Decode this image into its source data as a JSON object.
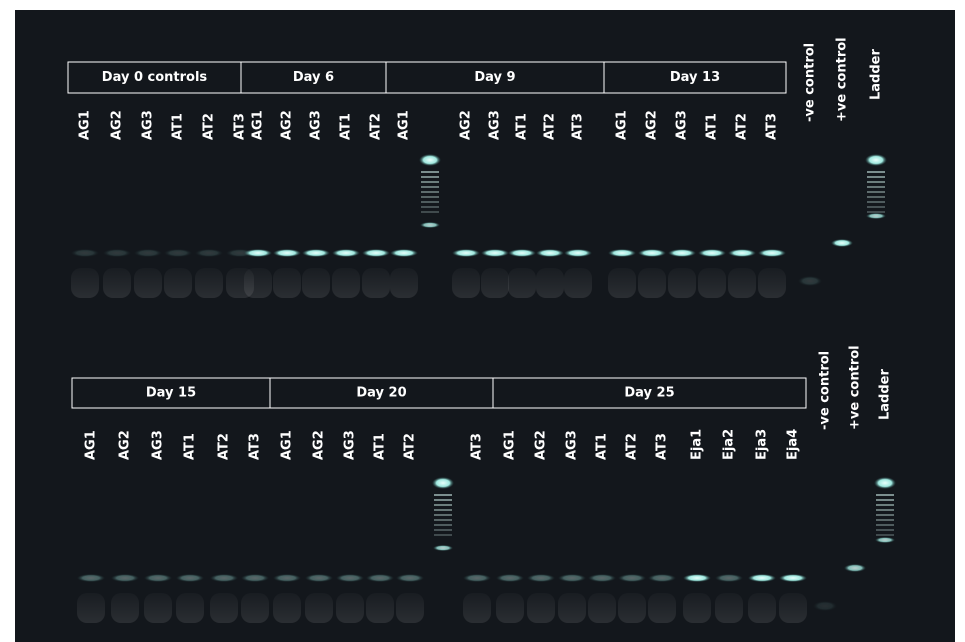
{
  "top_panel": {
    "groups": [
      "Day 0 controls",
      "Day 6",
      "Day 9",
      "Day 13"
    ],
    "lanes": [
      "AG1",
      "AG2",
      "AG3",
      "AT1",
      "AT2",
      "AT3",
      "AG1",
      "AG2",
      "AG3",
      "AT1",
      "AT2",
      "AG1",
      "AG2",
      "AG3",
      "AT1",
      "AT2",
      "AT3",
      "AG1",
      "AG2",
      "AG3",
      "AT1",
      "AT2",
      "AT3"
    ],
    "controls": [
      "-ve control",
      "+ve control",
      "Ladder"
    ]
  },
  "bottom_panel": {
    "groups": [
      "Day 15",
      "Day 20",
      "Day 25"
    ],
    "lanes": [
      "AG1",
      "AG2",
      "AG3",
      "AT1",
      "AT2",
      "AT3",
      "AG1",
      "AG2",
      "AG3",
      "AT1",
      "AT2",
      "AT3",
      "AG1",
      "AG2",
      "AG3",
      "AT1",
      "AT2",
      "AT3",
      "Eja1",
      "Eja2",
      "Eja3",
      "Eja4"
    ],
    "controls": [
      "-ve control",
      "+ve control",
      "Ladder"
    ]
  }
}
